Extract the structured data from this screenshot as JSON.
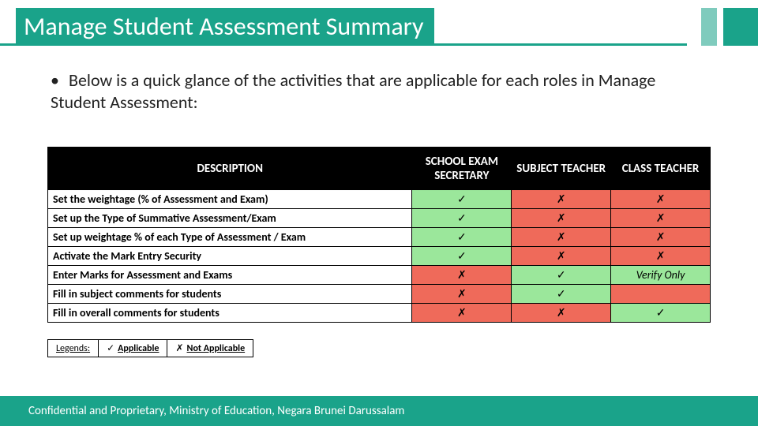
{
  "colors": {
    "brand": "#1aa38a",
    "brand_light": "#7fcbbd",
    "yes_bg": "#9be79b",
    "no_bg": "#ef6a5a",
    "header_bg": "#000000",
    "header_fg": "#ffffff"
  },
  "title": "Manage Student Assessment Summary",
  "intro": {
    "bullet": "•",
    "text": "Below is a quick glance of the activities that are applicable for each roles in Manage Student Assessment:"
  },
  "table": {
    "columns": [
      "DESCRIPTION",
      "SCHOOL EXAM SECRETARY",
      "SUBJECT TEACHER",
      "CLASS TEACHER"
    ],
    "marks": {
      "yes": "✓",
      "no": "✗"
    },
    "rows": [
      {
        "desc": "Set the weightage (% of Assessment and Exam)",
        "cells": [
          "yes",
          "no",
          "no"
        ]
      },
      {
        "desc": "Set up the Type of Summative Assessment/Exam",
        "cells": [
          "yes",
          "no",
          "no"
        ]
      },
      {
        "desc": "Set up weightage % of each Type of Assessment / Exam",
        "cells": [
          "yes",
          "no",
          "no"
        ]
      },
      {
        "desc": "Activate the Mark Entry Security",
        "cells": [
          "yes",
          "no",
          "no"
        ]
      },
      {
        "desc": "Enter Marks for Assessment and Exams",
        "cells": [
          "no",
          "yes",
          {
            "text": "Verify Only",
            "class": "note"
          }
        ]
      },
      {
        "desc": "Fill in subject comments for students",
        "cells": [
          "no",
          "yes",
          {
            "text": "",
            "class": "blank"
          }
        ]
      },
      {
        "desc": "Fill in overall comments for students",
        "cells": [
          "no",
          "no",
          "yes"
        ]
      }
    ]
  },
  "legend": {
    "title": "Legends:",
    "applicable": "Applicable",
    "not_applicable": "Not Applicable"
  },
  "footer": "Confidential and Proprietary, Ministry of Education, Negara Brunei Darussalam"
}
